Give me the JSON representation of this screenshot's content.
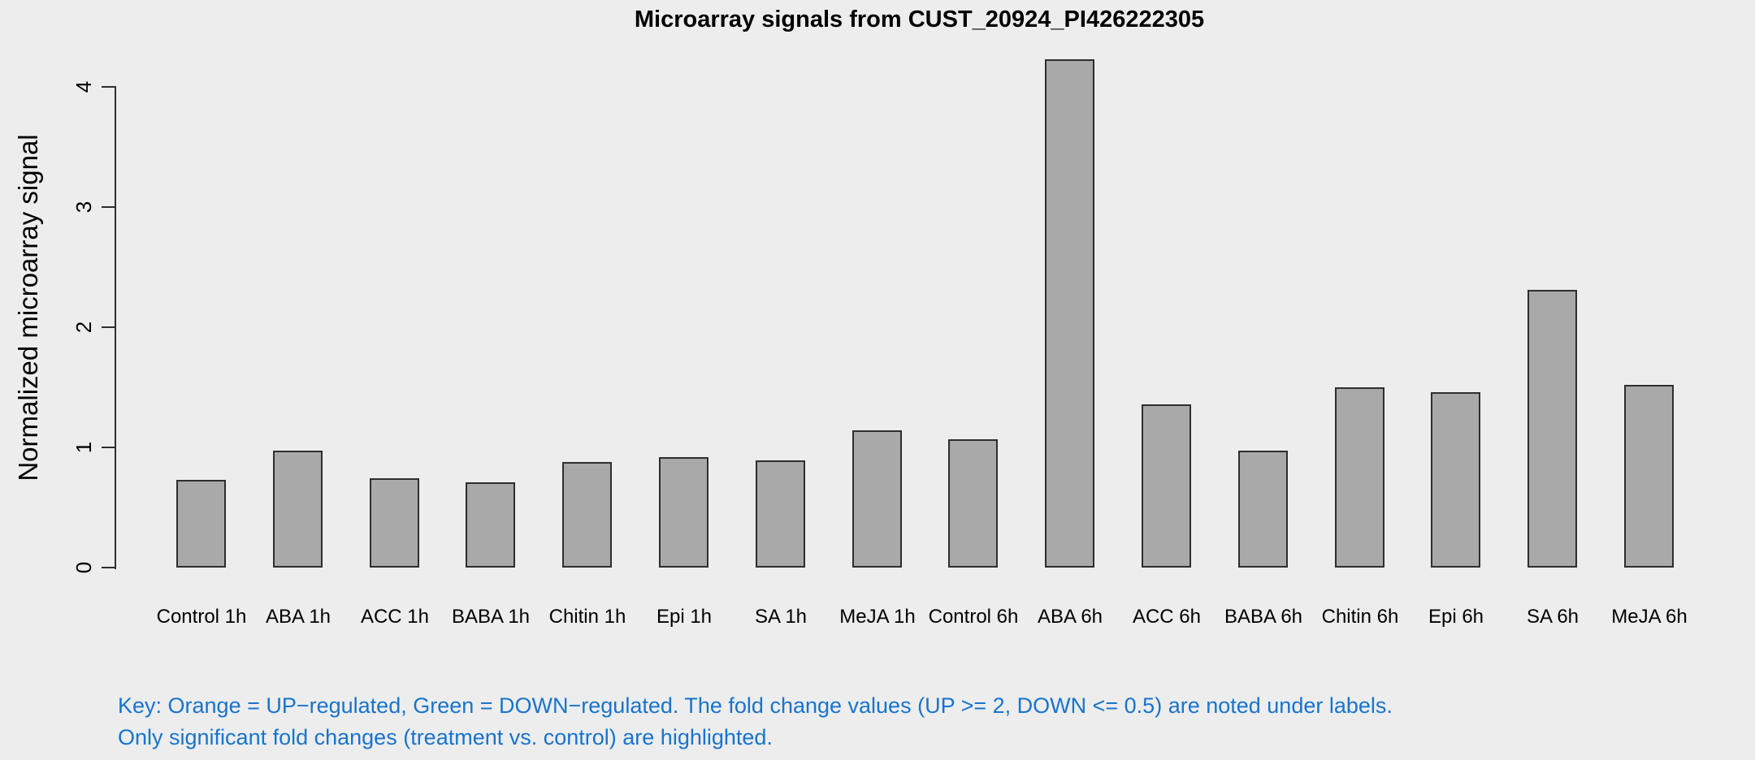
{
  "title": "Microarray signals from CUST_20924_PI426222305",
  "key": {
    "line1": "Key: Orange = UP−regulated, Green = DOWN−regulated. The fold change values (UP >= 2, DOWN <= 0.5) are noted under labels.",
    "line2": "Only significant fold changes (treatment vs. control) are highlighted.",
    "color": "#1874CD"
  },
  "chart_data": {
    "type": "bar",
    "title": "Microarray signals from CUST_20924_PI426222305",
    "xlabel": "",
    "ylabel": "Normalized microarray signal",
    "categories": [
      "Control 1h",
      "ABA 1h",
      "ACC 1h",
      "BABA 1h",
      "Chitin 1h",
      "Epi 1h",
      "SA 1h",
      "MeJA 1h",
      "Control 6h",
      "ABA 6h",
      "ACC 6h",
      "BABA 6h",
      "Chitin 6h",
      "Epi 6h",
      "SA 6h",
      "MeJA 6h"
    ],
    "values": [
      0.73,
      0.97,
      0.74,
      0.71,
      0.88,
      0.92,
      0.89,
      1.14,
      1.07,
      4.23,
      1.36,
      0.97,
      1.5,
      1.46,
      2.31,
      1.52
    ],
    "yticks": [
      0,
      1,
      2,
      3,
      4
    ],
    "ylim": [
      0,
      4.3
    ],
    "grid": false,
    "legend_position": "none",
    "background_color": "#EDEDED",
    "bar_fill_color": "#A9A9A9",
    "bar_border_color": "#2E2E2E",
    "axis_color": "#2E2E2E"
  }
}
